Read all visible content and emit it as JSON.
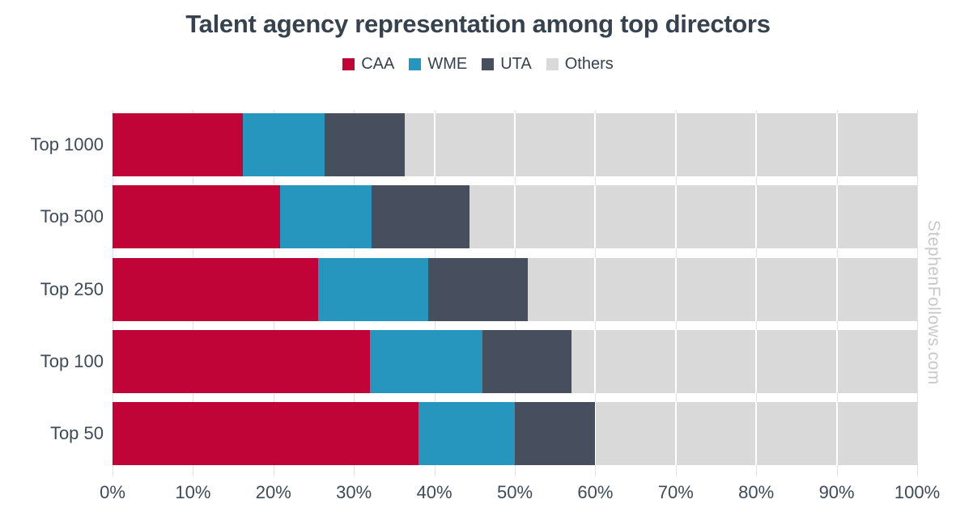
{
  "title": "Talent agency representation among top directors",
  "watermark": "StephenFollows.com",
  "colors": {
    "title_text": "#37424F",
    "axis_label_text": "#3E4A57",
    "gridline": "#E2E2E2",
    "watermark_text": "#C9C9C9",
    "background": "#FFFFFF",
    "caa": "#C00437",
    "wme": "#2696BE",
    "uta": "#474E5E",
    "others": "#D9D9D9"
  },
  "chart_data": {
    "type": "bar",
    "orientation": "horizontal",
    "stacked": true,
    "title": "Talent agency representation among top directors",
    "categories": [
      "Top 1000",
      "Top 500",
      "Top 250",
      "Top 100",
      "Top 50"
    ],
    "series": [
      {
        "name": "CAA",
        "color": "#C00437",
        "values": [
          16.2,
          20.8,
          25.6,
          32.0,
          38.0
        ]
      },
      {
        "name": "WME",
        "color": "#2696BE",
        "values": [
          10.2,
          11.4,
          13.6,
          14.0,
          12.0
        ]
      },
      {
        "name": "UTA",
        "color": "#474E5E",
        "values": [
          9.9,
          12.2,
          12.4,
          11.0,
          10.0
        ]
      },
      {
        "name": "Others",
        "color": "#D9D9D9",
        "values": [
          63.7,
          55.6,
          48.4,
          43.0,
          40.0
        ]
      }
    ],
    "x_tick_values": [
      0,
      10,
      20,
      30,
      40,
      50,
      60,
      70,
      80,
      90,
      100
    ],
    "x_tick_labels": [
      "0%",
      "10%",
      "20%",
      "30%",
      "40%",
      "50%",
      "60%",
      "70%",
      "80%",
      "90%",
      "100%"
    ],
    "xlim": [
      0,
      100
    ],
    "unit": "%",
    "legend_position": "top",
    "grid": true
  }
}
